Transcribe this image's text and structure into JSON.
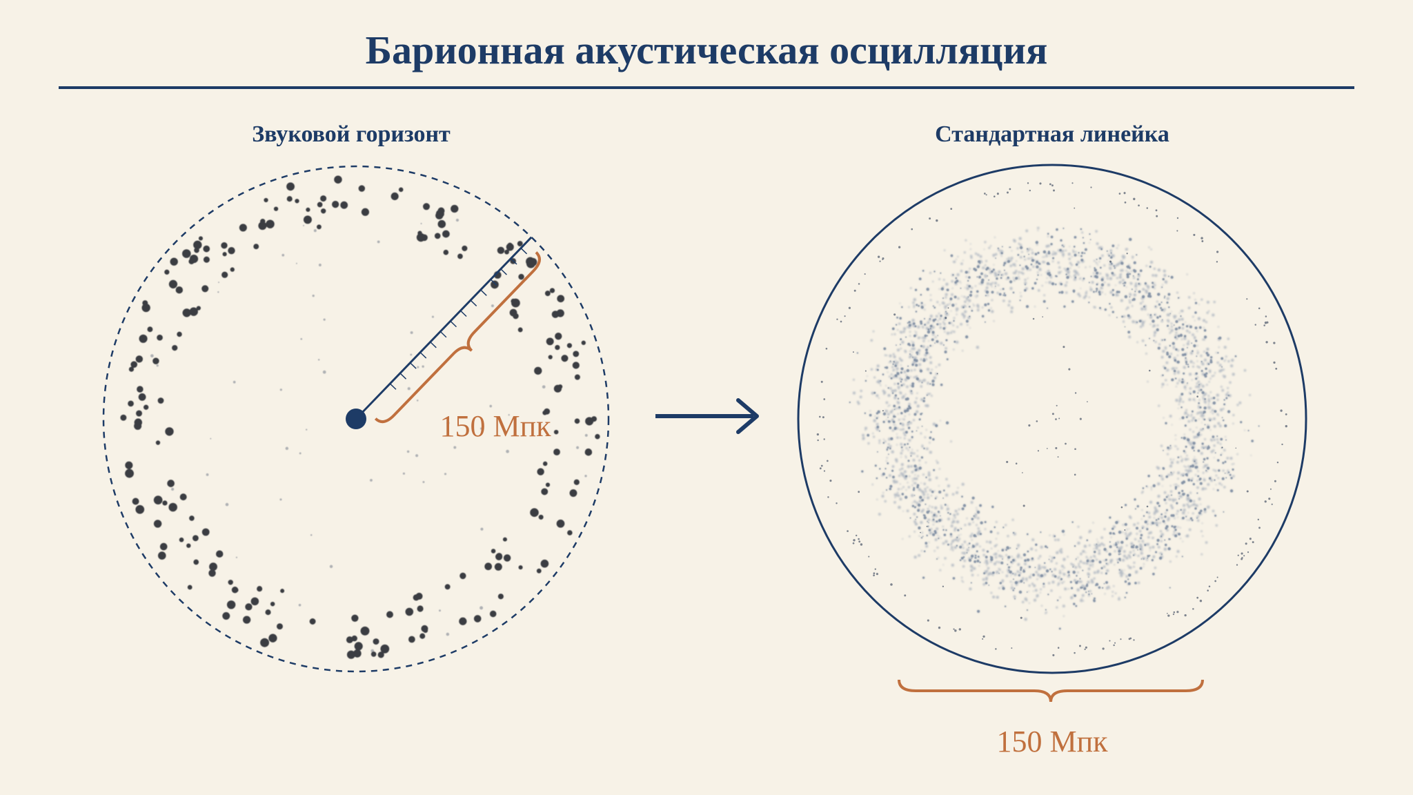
{
  "header": {
    "title": "Барионная акустическая осцилляция"
  },
  "panels": [
    {
      "label": "Звуковой горизонт",
      "scale_label": "150 Мпк"
    },
    {
      "label": "Стандартная линейка",
      "scale_label": "150 Мпк"
    }
  ]
}
